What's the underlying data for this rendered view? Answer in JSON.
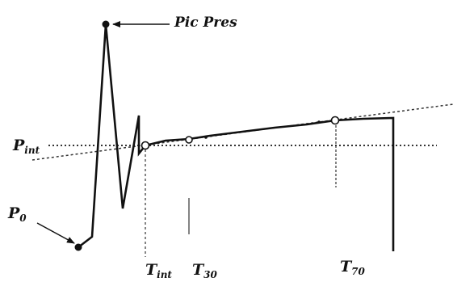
{
  "labels": {
    "pic_pres": "Pic Pres",
    "p_int_main": "P",
    "p_int_sub": "int",
    "p0_main": "P",
    "p0_sub": "0",
    "t_int_main": "T",
    "t_int_sub": "int",
    "t30_main": "T",
    "t30_sub": "30",
    "t70_main": "T",
    "t70_sub": "70"
  },
  "colors": {
    "ink": "#111111",
    "dotted_line": "#333333",
    "background": "#ffffff"
  }
}
